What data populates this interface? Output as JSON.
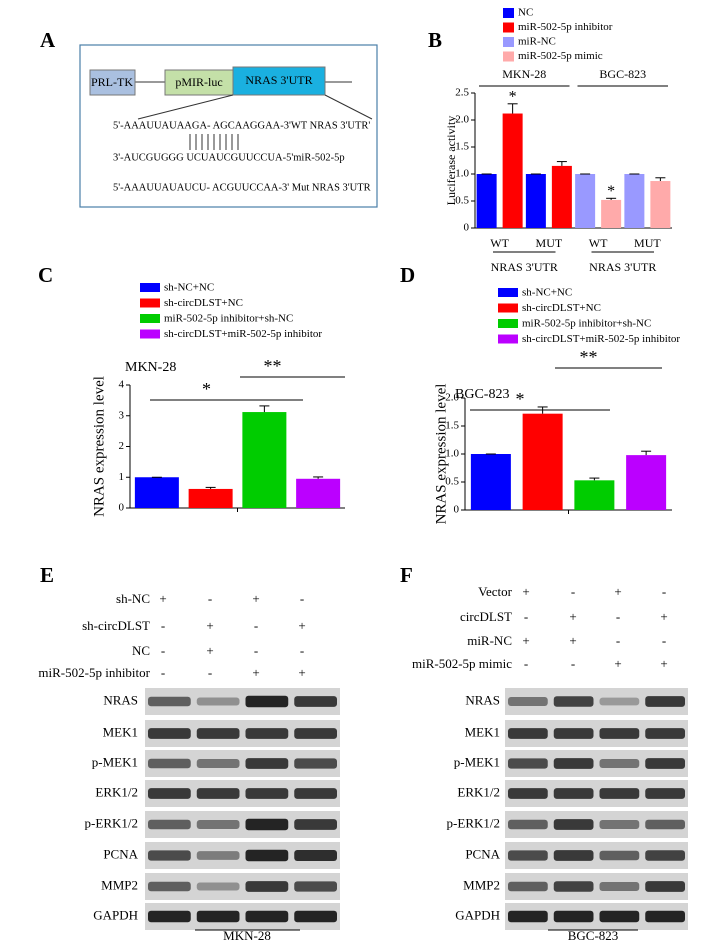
{
  "panel_labels": [
    "A",
    "B",
    "C",
    "D",
    "E",
    "F"
  ],
  "diagram": {
    "boxes": [
      "PRL-TK",
      "pMIR-luc",
      "NRAS 3'UTR"
    ],
    "sequences": [
      "5'-AAAUUAUAAGA- AGCAAGGAA-3'WT NRAS 3'UTR'",
      "3'-AUCGUGGG UCUAUCGUUCCUA-5'miR-502-5p",
      "5'-AAAUUAUAUCU- ACGUUCCAA-3' Mut NRAS 3'UTR"
    ]
  },
  "chart_data": [
    {
      "type": "bar",
      "y_label": "Luciferase activity",
      "categories": [
        "WT",
        "MUT",
        "WT",
        "MUT"
      ],
      "groups": [
        "MKN-28",
        "BGC-823"
      ],
      "group_sublabels": [
        "NRAS 3'UTR",
        "NRAS 3'UTR"
      ],
      "series": [
        {
          "name": "NC",
          "color": "#0000ff",
          "values": [
            1.0,
            1.0,
            null,
            null
          ],
          "errors": [
            0,
            0,
            null,
            null
          ]
        },
        {
          "name": "miR-502-5p inhibitor",
          "color": "#ff0000",
          "values": [
            2.12,
            1.15,
            null,
            null
          ],
          "errors": [
            0.18,
            0.08,
            null,
            null
          ]
        },
        {
          "name": "miR-NC",
          "color": "#9999ff",
          "values": [
            null,
            null,
            1.0,
            1.0
          ],
          "errors": [
            null,
            null,
            0,
            0
          ]
        },
        {
          "name": "miR-502-5p mimic",
          "color": "#ffaaaa",
          "values": [
            null,
            null,
            0.52,
            0.87
          ],
          "errors": [
            null,
            null,
            0.03,
            0.06
          ]
        }
      ],
      "annotations": [
        "*",
        "*"
      ],
      "ylim": [
        0,
        2.5
      ],
      "yticks": [
        0,
        0.5,
        {
          "value": 1,
          "label": "1.0"
        },
        1.5,
        {
          "value": 2,
          "label": "2.0"
        },
        2.5
      ]
    },
    {
      "type": "bar",
      "title": "MKN-28",
      "y_label": "NRAS expression level",
      "categories": [
        "sh-NC+NC",
        "sh-circDLST+NC",
        "miR-502-5p inhibitor+sh-NC",
        "sh-circDLST+miR-502-5p inhibitor"
      ],
      "colors": [
        "#0000ff",
        "#ff0000",
        "#00cc00",
        "#bb00ff"
      ],
      "values": [
        1.0,
        0.62,
        3.12,
        0.95
      ],
      "errors": [
        0,
        0.05,
        0.2,
        0.06
      ],
      "significance": [
        "*",
        "**"
      ],
      "ylim": [
        0,
        4
      ],
      "yticks": [
        0,
        1,
        2,
        3,
        4
      ]
    },
    {
      "type": "bar",
      "title": "BGC-823",
      "y_label": "NRAS expression level",
      "categories": [
        "sh-NC+NC",
        "sh-circDLST+NC",
        "miR-502-5p inhibitor+sh-NC",
        "sh-circDLST+miR-502-5p inhibitor"
      ],
      "colors": [
        "#0000ff",
        "#ff0000",
        "#00cc00",
        "#bb00ff"
      ],
      "values": [
        1.0,
        1.72,
        0.53,
        0.98
      ],
      "errors": [
        0,
        0.12,
        0.04,
        0.07
      ],
      "significance": [
        "*",
        "**"
      ],
      "ylim": [
        0,
        2.0
      ],
      "yticks": [
        0,
        0.5,
        {
          "value": 1,
          "label": "1.0"
        },
        1.5,
        {
          "value": 2,
          "label": "2.0"
        }
      ]
    }
  ],
  "blots": [
    {
      "conditions": [
        {
          "label": "sh-NC",
          "signs": [
            "+",
            "-",
            "+",
            "-"
          ]
        },
        {
          "label": "sh-circDLST",
          "signs": [
            "-",
            "+",
            "-",
            "+"
          ]
        },
        {
          "label": "NC",
          "signs": [
            "-",
            "+",
            "-",
            "-"
          ]
        },
        {
          "label": "miR-502-5p inhibitor",
          "signs": [
            "-",
            "-",
            "+",
            "+"
          ]
        }
      ],
      "proteins": [
        "NRAS",
        "MEK1",
        "p-MEK1",
        "ERK1/2",
        "p-ERK1/2",
        "PCNA",
        "MMP2",
        "GAPDH"
      ],
      "cell_line": "MKN-28"
    },
    {
      "conditions": [
        {
          "label": "Vector",
          "signs": [
            "+",
            "-",
            "+",
            "-"
          ]
        },
        {
          "label": "circDLST",
          "signs": [
            "-",
            "+",
            "-",
            "+"
          ]
        },
        {
          "label": "miR-NC",
          "signs": [
            "+",
            "+",
            "-",
            "-"
          ]
        },
        {
          "label": "miR-502-5p mimic",
          "signs": [
            "-",
            "-",
            "+",
            "+"
          ]
        }
      ],
      "proteins": [
        "NRAS",
        "MEK1",
        "p-MEK1",
        "ERK1/2",
        "p-ERK1/2",
        "PCNA",
        "MMP2",
        "GAPDH"
      ],
      "cell_line": "BGC-823"
    }
  ]
}
